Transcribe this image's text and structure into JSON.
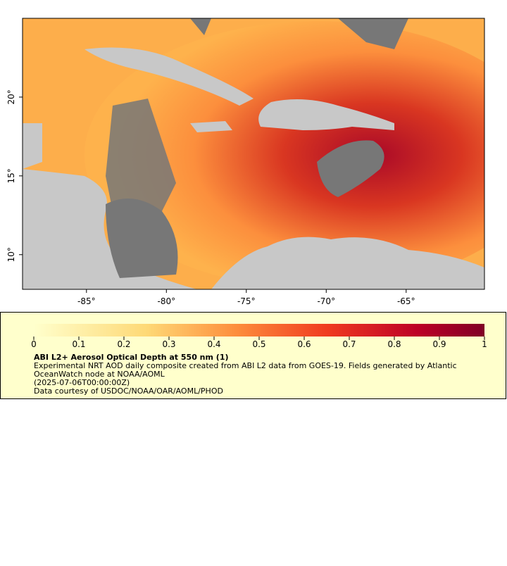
{
  "map": {
    "xlim": [
      -89,
      -60.1
    ],
    "ylim": [
      7.8,
      25
    ],
    "xticks": [
      {
        "value": -85,
        "label": "-85°"
      },
      {
        "value": -80,
        "label": "-80°"
      },
      {
        "value": -75,
        "label": "-75°"
      },
      {
        "value": -70,
        "label": "-70°"
      },
      {
        "value": -65,
        "label": "-65°"
      }
    ],
    "yticks": [
      {
        "value": 10,
        "label": "10°"
      },
      {
        "value": 15,
        "label": "15°"
      },
      {
        "value": 20,
        "label": "20°"
      }
    ],
    "colorbar": {
      "lim": [
        0,
        1
      ],
      "ticks": [
        0,
        0.1,
        0.2,
        0.3,
        0.4,
        0.5,
        0.6,
        0.7,
        0.8,
        0.9,
        1
      ]
    },
    "legend": {
      "title": "ABI L2+ Aerosol Optical Depth at 550 nm (1)",
      "lines": [
        "Experimental NRT AOD daily composite created from ABI L2 data from GOES-19. Fields generated by Atlantic",
        "OceanWatch node at NOAA/AOML",
        "(2025-07-06T00:00:00Z)",
        "Data courtesy of USDOC/NOAA/OAR/AOML/PHOD"
      ]
    }
  }
}
